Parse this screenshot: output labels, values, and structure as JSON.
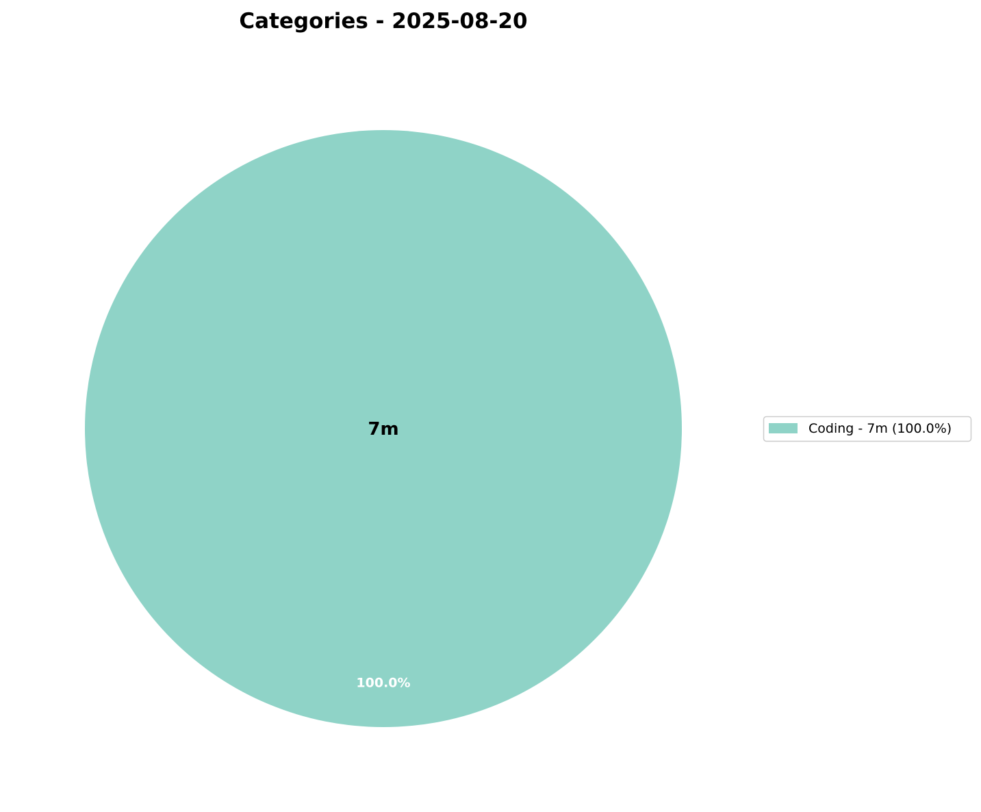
{
  "chart_data": {
    "type": "pie",
    "title": "Categories - 2025-08-20",
    "center_label": "7m",
    "slices": [
      {
        "label": "Coding",
        "value": 7,
        "display": "7m",
        "percent": 100.0,
        "percent_label": "100.0%",
        "color": "#8fd3c7"
      }
    ],
    "legend": {
      "placement": "right",
      "entries": [
        "Coding - 7m (100.0%)"
      ]
    },
    "percent_label_color": "#ffffff"
  }
}
